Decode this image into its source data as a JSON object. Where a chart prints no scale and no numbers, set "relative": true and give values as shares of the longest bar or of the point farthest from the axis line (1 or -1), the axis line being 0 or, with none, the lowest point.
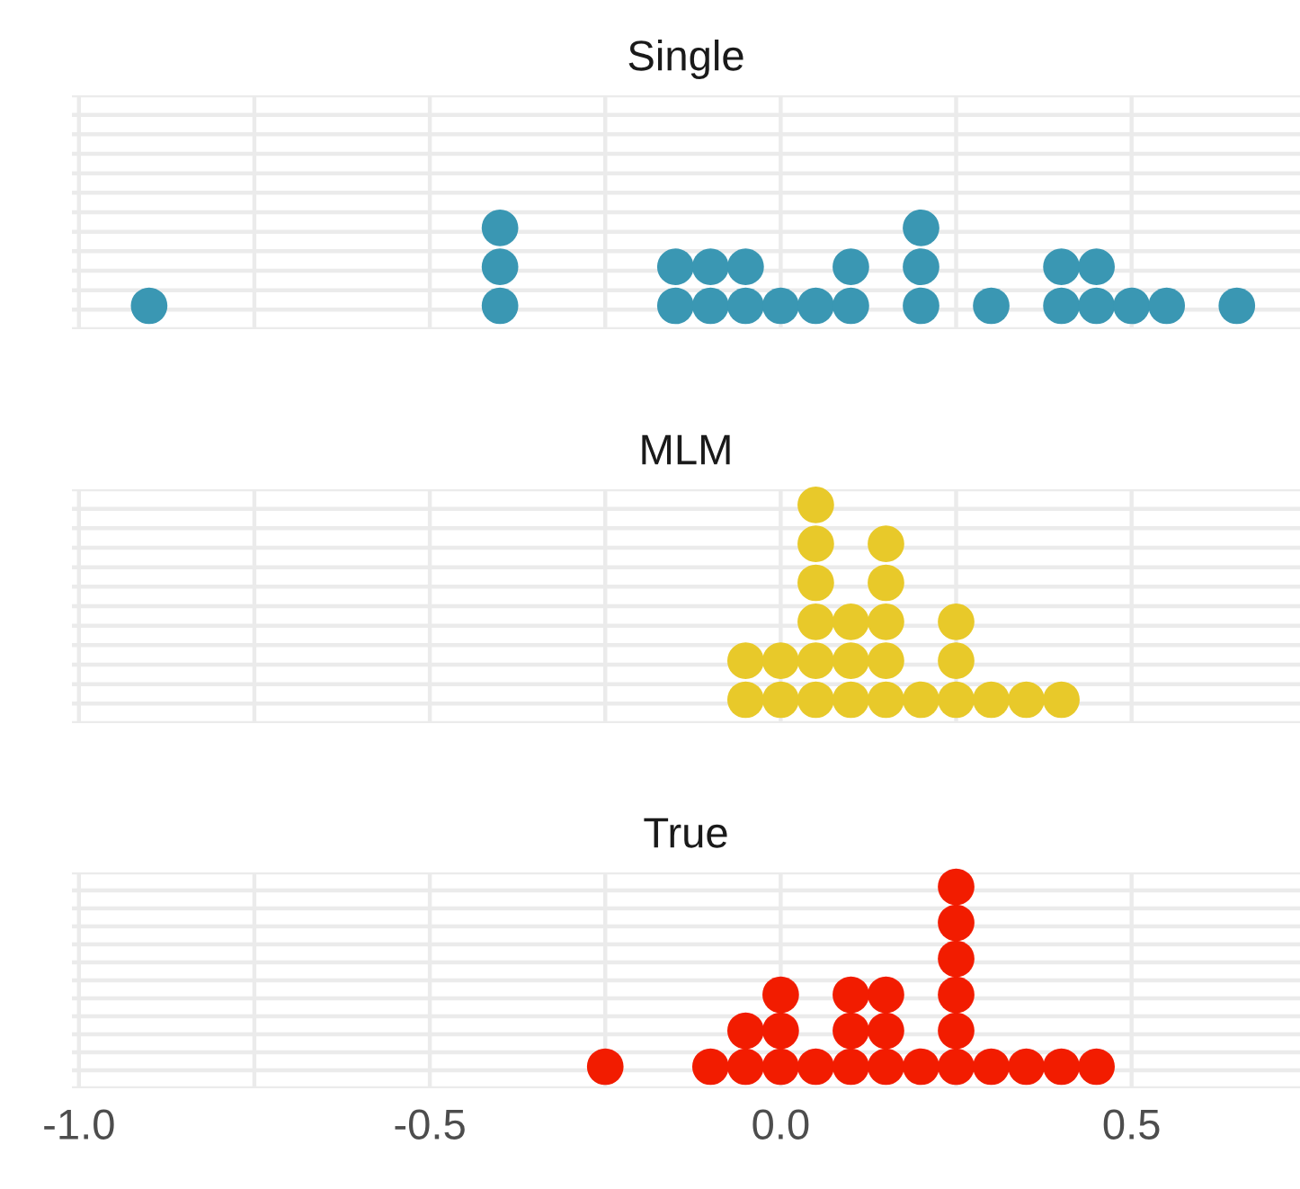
{
  "chart_data": [
    {
      "type": "scatter",
      "title": "Single",
      "relative": true,
      "x": [
        -0.9,
        -0.4,
        -0.4,
        -0.4,
        -0.15,
        -0.15,
        -0.1,
        -0.1,
        -0.05,
        -0.05,
        0.0,
        0.05,
        0.1,
        0.1,
        0.2,
        0.2,
        0.2,
        0.3,
        0.4,
        0.4,
        0.45,
        0.45,
        0.5,
        0.55,
        0.65
      ],
      "values": [
        0,
        0,
        0.5,
        1,
        0,
        0.5,
        0,
        0.5,
        0,
        0.5,
        0,
        0,
        0,
        0.5,
        0,
        0.5,
        1,
        0,
        0,
        0.5,
        0,
        0.5,
        0,
        0,
        0
      ],
      "color": "#3a97b3",
      "marker": "circle",
      "grid": true,
      "tick_labels": false,
      "xlim": [
        -1.01,
        0.74
      ],
      "xticks": [
        {
          "value": -1.0,
          "label": null
        },
        {
          "value": -0.75,
          "label": null
        },
        {
          "value": -0.5,
          "label": null
        },
        {
          "value": -0.25,
          "label": null
        },
        {
          "value": 0.0,
          "label": null
        },
        {
          "value": 0.25,
          "label": null
        },
        {
          "value": 0.5,
          "label": null
        }
      ]
    },
    {
      "type": "scatter",
      "title": "MLM",
      "relative": true,
      "x": [
        -0.05,
        -0.05,
        0.0,
        0.0,
        0.05,
        0.05,
        0.05,
        0.05,
        0.05,
        0.05,
        0.1,
        0.1,
        0.1,
        0.15,
        0.15,
        0.15,
        0.15,
        0.15,
        0.2,
        0.25,
        0.25,
        0.25,
        0.3,
        0.35,
        0.4
      ],
      "values": [
        0,
        0.2,
        0,
        0.2,
        0,
        0.2,
        0.4,
        0.6,
        0.8,
        1,
        0,
        0.2,
        0.4,
        0,
        0.2,
        0.4,
        0.6,
        0.8,
        0,
        0,
        0.2,
        0.4,
        0,
        0,
        0
      ],
      "color": "#e8c92a",
      "marker": "circle",
      "grid": true,
      "tick_labels": false,
      "xlim": [
        -1.01,
        0.74
      ],
      "xticks": [
        {
          "value": -1.0,
          "label": null
        },
        {
          "value": -0.75,
          "label": null
        },
        {
          "value": -0.5,
          "label": null
        },
        {
          "value": -0.25,
          "label": null
        },
        {
          "value": 0.0,
          "label": null
        },
        {
          "value": 0.25,
          "label": null
        },
        {
          "value": 0.5,
          "label": null
        }
      ]
    },
    {
      "type": "scatter",
      "title": "True",
      "relative": true,
      "x": [
        -0.25,
        -0.1,
        -0.05,
        -0.05,
        0.0,
        0.0,
        0.0,
        0.05,
        0.1,
        0.1,
        0.1,
        0.15,
        0.15,
        0.15,
        0.2,
        0.25,
        0.25,
        0.25,
        0.25,
        0.25,
        0.25,
        0.3,
        0.35,
        0.4,
        0.45
      ],
      "values": [
        0,
        0,
        0,
        0.2,
        0,
        0.2,
        0.4,
        0,
        0,
        0.2,
        0.4,
        0,
        0.2,
        0.4,
        0,
        0,
        0.2,
        0.4,
        0.6,
        0.8,
        1,
        0,
        0,
        0,
        0
      ],
      "color": "#f21c00",
      "marker": "circle",
      "grid": true,
      "tick_labels": "x",
      "xlim": [
        -1.01,
        0.74
      ],
      "xticks": [
        {
          "value": -1.0,
          "label": "-1.0"
        },
        {
          "value": -0.75,
          "label": null
        },
        {
          "value": -0.5,
          "label": "-0.5"
        },
        {
          "value": -0.25,
          "label": null
        },
        {
          "value": 0.0,
          "label": "0.0"
        },
        {
          "value": 0.25,
          "label": null
        },
        {
          "value": 0.5,
          "label": "0.5"
        }
      ]
    }
  ]
}
